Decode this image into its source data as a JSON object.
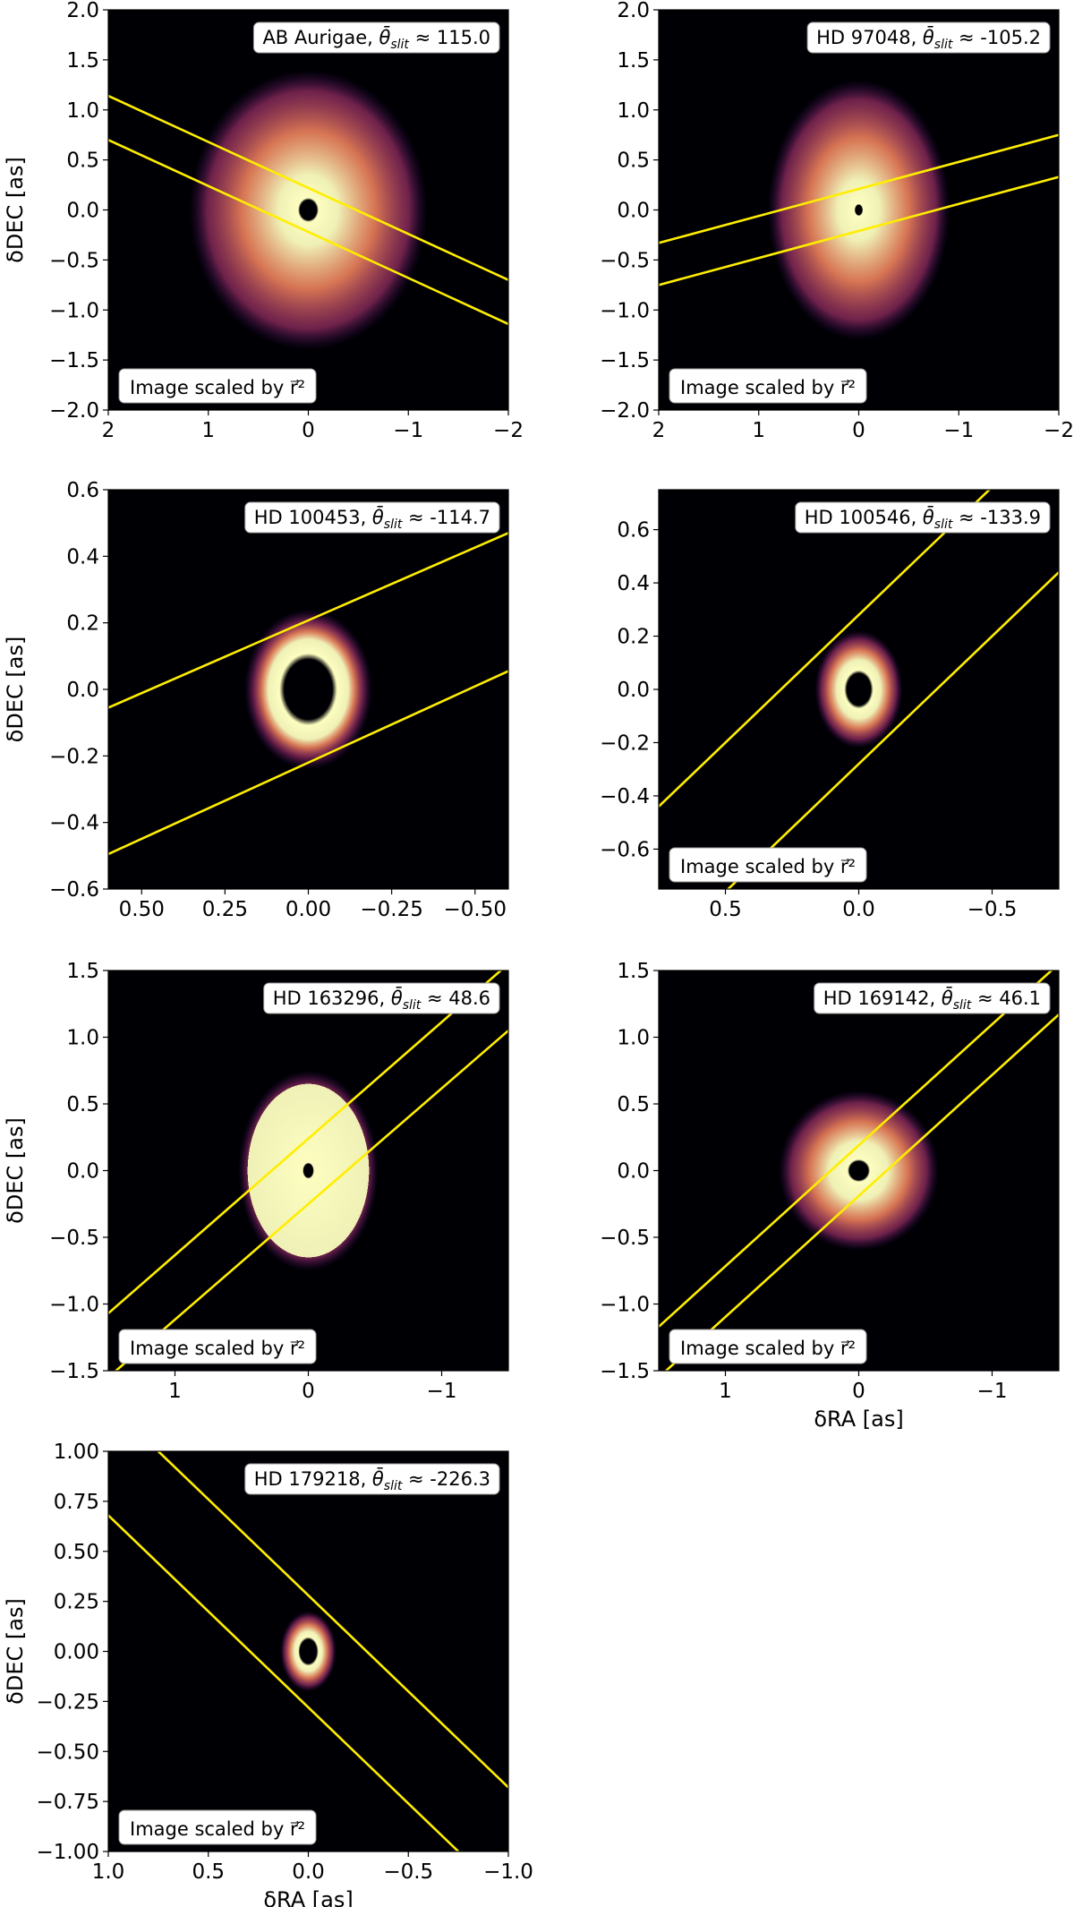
{
  "colors": {
    "slit_line": "#ffee00",
    "background": "#000004",
    "disk_core": "#fcfdbf",
    "disk_mid": "#fc8961",
    "disk_outer": "#b73779",
    "disk_faint": "#51127c"
  },
  "chart_data": [
    {
      "type": "heatmap",
      "panel": "top-left",
      "target": "AB Aurigae",
      "title_prefix": "AB Aurigae, ",
      "theta_symbol": "θ̄",
      "theta_sub": "slit",
      "approx": " ≈ ",
      "theta_value": "115.0",
      "scaled_note": "Image scaled by r⃗²",
      "xlim": [
        2,
        -2
      ],
      "ylim": [
        -2,
        2
      ],
      "xticks": [
        2,
        1,
        0,
        -1,
        -2
      ],
      "xtick_labels": [
        "2",
        "1",
        "0",
        "−1",
        "−2"
      ],
      "yticks": [
        2,
        1.5,
        1,
        0.5,
        0,
        -0.5,
        -1,
        -1.5,
        -2
      ],
      "ytick_labels": [
        "2.0",
        "1.5",
        "1.0",
        "0.5",
        "0.0",
        "−0.5",
        "−1.0",
        "−1.5",
        "−2.0"
      ],
      "ylabel": "δDEC [as]",
      "xlabel": "",
      "slit_lines": [
        [
          [
            2,
            1.14
          ],
          [
            -2,
            -0.7
          ]
        ],
        [
          [
            2,
            0.7
          ],
          [
            -2,
            -1.14
          ]
        ]
      ],
      "disk": {
        "inner_radius": 0.1,
        "ring_radius": 0.35,
        "outer_radius": 1.4,
        "inclination": 0.85,
        "pa": 0
      }
    },
    {
      "type": "heatmap",
      "panel": "top-right",
      "target": "HD 97048",
      "title_prefix": "HD 97048, ",
      "theta_symbol": "θ̄",
      "theta_sub": "slit",
      "approx": " ≈ ",
      "theta_value": "-105.2",
      "scaled_note": "Image scaled by r⃗²",
      "xlim": [
        2,
        -2
      ],
      "ylim": [
        -2,
        2
      ],
      "xticks": [
        2,
        1,
        0,
        -1,
        -2
      ],
      "xtick_labels": [
        "2",
        "1",
        "0",
        "−1",
        "−2"
      ],
      "yticks": [
        2,
        1.5,
        1,
        0.5,
        0,
        -0.5,
        -1,
        -1.5,
        -2
      ],
      "ytick_labels": [
        "2.0",
        "1.5",
        "1.0",
        "0.5",
        "0.0",
        "−0.5",
        "−1.0",
        "−1.5",
        "−2.0"
      ],
      "ylabel": "",
      "xlabel": "",
      "slit_lines": [
        [
          [
            2,
            -0.33
          ],
          [
            -2,
            0.75
          ]
        ],
        [
          [
            2,
            -0.75
          ],
          [
            -2,
            0.33
          ]
        ]
      ],
      "disk": {
        "inner_radius": 0.05,
        "ring_radius": 0.3,
        "outer_radius": 1.3,
        "inclination": 0.7,
        "pa": 0
      }
    },
    {
      "type": "heatmap",
      "panel": "middle-left",
      "target": "HD 100453",
      "title_prefix": "HD 100453, ",
      "theta_symbol": "θ̄",
      "theta_sub": "slit",
      "approx": " ≈ ",
      "theta_value": "-114.7",
      "scaled_note": "",
      "xlim": [
        0.6,
        -0.6
      ],
      "ylim": [
        -0.6,
        0.6
      ],
      "xticks": [
        0.5,
        0.25,
        0,
        -0.25,
        -0.5
      ],
      "xtick_labels": [
        "0.50",
        "0.25",
        "0.00",
        "−0.25",
        "−0.50"
      ],
      "yticks": [
        0.6,
        0.4,
        0.2,
        0,
        -0.2,
        -0.4,
        -0.6
      ],
      "ytick_labels": [
        "0.6",
        "0.4",
        "0.2",
        "0.0",
        "−0.2",
        "−0.4",
        "−0.6"
      ],
      "ylabel": "δDEC [as]",
      "xlabel": "",
      "slit_lines": [
        [
          [
            0.6,
            -0.055
          ],
          [
            -0.6,
            0.47
          ]
        ],
        [
          [
            0.6,
            -0.495
          ],
          [
            -0.6,
            0.055
          ]
        ]
      ],
      "disk": {
        "inner_radius": 0.09,
        "ring_radius": 0.15,
        "outer_radius": 0.24,
        "inclination": 0.8,
        "pa": 0
      }
    },
    {
      "type": "heatmap",
      "panel": "middle-right",
      "target": "HD 100546",
      "title_prefix": "HD 100546, ",
      "theta_symbol": "θ̄",
      "theta_sub": "slit",
      "approx": " ≈ ",
      "theta_value": "-133.9",
      "scaled_note": "Image scaled by r⃗²",
      "xlim": [
        0.75,
        -0.75
      ],
      "ylim": [
        -0.75,
        0.75
      ],
      "xticks": [
        0.5,
        0,
        -0.5
      ],
      "xtick_labels": [
        "0.5",
        "0.0",
        "−0.5"
      ],
      "yticks": [
        0.6,
        0.4,
        0.2,
        0,
        -0.2,
        -0.4,
        -0.6
      ],
      "ytick_labels": [
        "0.6",
        "0.4",
        "0.2",
        "0.0",
        "−0.2",
        "−0.4",
        "−0.6"
      ],
      "ylabel": "",
      "xlabel": "",
      "slit_lines": [
        [
          [
            0.75,
            -0.44
          ],
          [
            -0.75,
            1.0
          ]
        ],
        [
          [
            0.75,
            -1.0
          ],
          [
            -0.75,
            0.44
          ]
        ]
      ],
      "disk": {
        "inner_radius": 0.06,
        "ring_radius": 0.11,
        "outer_radius": 0.22,
        "inclination": 0.75,
        "pa": 0
      }
    },
    {
      "type": "heatmap",
      "panel": "lower-left",
      "target": "HD 163296",
      "title_prefix": "HD 163296, ",
      "theta_symbol": "θ̄",
      "theta_sub": "slit",
      "approx": " ≈ ",
      "theta_value": "48.6",
      "scaled_note": "Image scaled by r⃗²",
      "xlim": [
        1.5,
        -1.5
      ],
      "ylim": [
        -1.5,
        1.5
      ],
      "xticks": [
        1,
        0,
        -1
      ],
      "xtick_labels": [
        "1",
        "0",
        "−1"
      ],
      "yticks": [
        1.5,
        1,
        0.5,
        0,
        -0.5,
        -1,
        -1.5
      ],
      "ytick_labels": [
        "1.5",
        "1.0",
        "0.5",
        "0.0",
        "−0.5",
        "−1.0",
        "−1.5"
      ],
      "ylabel": "δDEC [as]",
      "xlabel": "",
      "slit_lines": [
        [
          [
            1.5,
            -1.07
          ],
          [
            -1.5,
            1.55
          ]
        ],
        [
          [
            1.5,
            -1.55
          ],
          [
            -1.5,
            1.05
          ]
        ]
      ],
      "disk": {
        "inner_radius": 0.05,
        "ring_radius": 0.65,
        "outer_radius": 0.75,
        "inclination": 0.7,
        "pa": 0
      }
    },
    {
      "type": "heatmap",
      "panel": "lower-right",
      "target": "HD 169142",
      "title_prefix": "HD 169142, ",
      "theta_symbol": "θ̄",
      "theta_sub": "slit",
      "approx": " ≈ ",
      "theta_value": "46.1",
      "scaled_note": "Image scaled by r⃗²",
      "xlim": [
        1.5,
        -1.5
      ],
      "ylim": [
        -1.5,
        1.5
      ],
      "xticks": [
        1,
        0,
        -1
      ],
      "xtick_labels": [
        "1",
        "0",
        "−1"
      ],
      "yticks": [
        1.5,
        1,
        0.5,
        0,
        -0.5,
        -1,
        -1.5
      ],
      "ytick_labels": [
        "1.5",
        "1.0",
        "0.5",
        "0.0",
        "−0.5",
        "−1.0",
        "−1.5"
      ],
      "ylabel": "",
      "xlabel": "δRA [as]",
      "slit_lines": [
        [
          [
            1.5,
            -1.17
          ],
          [
            -1.5,
            1.55
          ]
        ],
        [
          [
            1.5,
            -1.55
          ],
          [
            -1.5,
            1.17
          ]
        ]
      ],
      "disk": {
        "inner_radius": 0.07,
        "ring_radius": 0.22,
        "outer_radius": 0.6,
        "inclination": 1.0,
        "pa": 0
      }
    },
    {
      "type": "heatmap",
      "panel": "bottom-left",
      "target": "HD 179218",
      "title_prefix": "HD 179218, ",
      "theta_symbol": "θ̄",
      "theta_sub": "slit",
      "approx": " ≈ ",
      "theta_value": "-226.3",
      "scaled_note": "Image scaled by r⃗²",
      "xlim": [
        1.0,
        -1.0
      ],
      "ylim": [
        -1.0,
        1.0
      ],
      "xticks": [
        1,
        0.5,
        0,
        -0.5,
        -1
      ],
      "xtick_labels": [
        "1.0",
        "0.5",
        "0.0",
        "−0.5",
        "−1.0"
      ],
      "yticks": [
        1,
        0.75,
        0.5,
        0.25,
        0,
        -0.25,
        -0.5,
        -0.75,
        -1
      ],
      "ytick_labels": [
        "1.00",
        "0.75",
        "0.50",
        "0.25",
        "0.00",
        "−0.25",
        "−0.50",
        "−0.75",
        "−1.00"
      ],
      "ylabel": "δDEC [as]",
      "xlabel": "δRA [as]",
      "slit_lines": [
        [
          [
            0.75,
            1.0
          ],
          [
            -1.0,
            -0.68
          ]
        ],
        [
          [
            1.0,
            0.68
          ],
          [
            -0.75,
            -1.0
          ]
        ]
      ],
      "disk": {
        "inner_radius": 0.06,
        "ring_radius": 0.1,
        "outer_radius": 0.2,
        "inclination": 0.7,
        "pa": 0
      }
    }
  ]
}
